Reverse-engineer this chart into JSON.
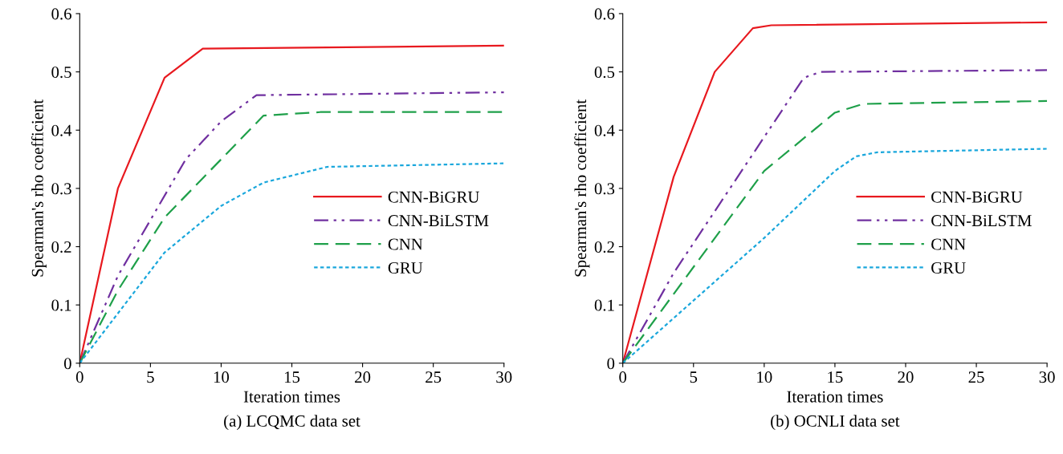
{
  "chart_data": [
    {
      "type": "line",
      "title": "(a) LCQMC data set",
      "xlabel": "Iteration times",
      "ylabel": "Spearman's rho coefficient",
      "xlim": [
        0,
        30
      ],
      "ylim": [
        0,
        0.6
      ],
      "xticks": [
        0,
        5,
        10,
        15,
        20,
        25,
        30
      ],
      "yticks": [
        0,
        0.1,
        0.2,
        0.3,
        0.4,
        0.5,
        0.6
      ],
      "grid": false,
      "legend": "center right",
      "marker": "none",
      "series": [
        {
          "name": "CNN-BiGRU",
          "color": "#e8191f",
          "line_style": "solid",
          "x": [
            0,
            2.7,
            6,
            8.7,
            30
          ],
          "values": [
            0,
            0.3,
            0.49,
            0.54,
            0.545
          ]
        },
        {
          "name": "CNN-BiLSTM",
          "color": "#7030a0",
          "line_style": "dashdotdot",
          "x": [
            0,
            2.7,
            7.5,
            10,
            12.5,
            30
          ],
          "values": [
            0,
            0.15,
            0.35,
            0.415,
            0.46,
            0.465
          ]
        },
        {
          "name": "CNN",
          "color": "#1fa04a",
          "line_style": "dashed",
          "x": [
            0,
            2.7,
            6,
            13,
            17,
            30
          ],
          "values": [
            0,
            0.125,
            0.25,
            0.425,
            0.431,
            0.431
          ]
        },
        {
          "name": "GRU",
          "color": "#1aa7dc",
          "line_style": "dotted",
          "x": [
            0,
            6,
            10,
            13,
            17.5,
            30
          ],
          "values": [
            0,
            0.19,
            0.27,
            0.31,
            0.337,
            0.343
          ]
        }
      ]
    },
    {
      "type": "line",
      "title": "(b) OCNLI data set",
      "xlabel": "Iteration times",
      "ylabel": "Spearman's rho coefficient",
      "xlim": [
        0,
        30
      ],
      "ylim": [
        0,
        0.6
      ],
      "xticks": [
        0,
        5,
        10,
        15,
        20,
        25,
        30
      ],
      "yticks": [
        0,
        0.1,
        0.2,
        0.3,
        0.4,
        0.5,
        0.6
      ],
      "grid": false,
      "legend": "center right",
      "marker": "none",
      "series": [
        {
          "name": "CNN-BiGRU",
          "color": "#e8191f",
          "line_style": "solid",
          "x": [
            0,
            3.6,
            6.5,
            9.2,
            10.5,
            30
          ],
          "values": [
            0,
            0.32,
            0.5,
            0.575,
            0.58,
            0.585
          ]
        },
        {
          "name": "CNN-BiLSTM",
          "color": "#7030a0",
          "line_style": "dashdotdot",
          "x": [
            0,
            3.6,
            9.5,
            12.8,
            14,
            30
          ],
          "values": [
            0,
            0.155,
            0.37,
            0.49,
            0.5,
            0.503
          ]
        },
        {
          "name": "CNN",
          "color": "#1fa04a",
          "line_style": "dashed",
          "x": [
            0,
            10,
            15,
            17,
            30
          ],
          "values": [
            0,
            0.33,
            0.43,
            0.445,
            0.45
          ]
        },
        {
          "name": "GRU",
          "color": "#1aa7dc",
          "line_style": "dotted",
          "x": [
            0,
            10,
            15,
            16.5,
            18,
            30
          ],
          "values": [
            0,
            0.215,
            0.33,
            0.355,
            0.362,
            0.368
          ]
        }
      ]
    }
  ]
}
